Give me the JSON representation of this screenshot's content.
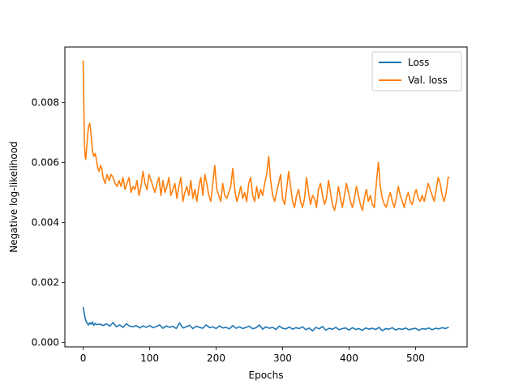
{
  "chart_data": {
    "type": "line",
    "title": "",
    "xlabel": "Epochs",
    "ylabel": "Negative log-likelihood",
    "xlim": [
      -27.5,
      577.5
    ],
    "ylim": [
      -0.00015,
      0.00985
    ],
    "xticks": [
      0,
      100,
      200,
      300,
      400,
      500
    ],
    "xtick_labels": [
      "0",
      "100",
      "200",
      "300",
      "400",
      "500"
    ],
    "yticks": [
      0.0,
      0.002,
      0.004,
      0.006,
      0.008
    ],
    "ytick_labels": [
      "0.000",
      "0.002",
      "0.004",
      "0.006",
      "0.008"
    ],
    "grid": false,
    "legend_position": "top-right",
    "series": [
      {
        "name": "Loss",
        "color": "#1f77b4",
        "x": [
          0,
          2,
          4,
          6,
          8,
          10,
          12,
          14,
          16,
          18,
          20,
          25,
          30,
          35,
          40,
          45,
          50,
          55,
          60,
          65,
          70,
          75,
          80,
          85,
          90,
          95,
          100,
          105,
          110,
          115,
          120,
          125,
          130,
          135,
          140,
          145,
          150,
          155,
          160,
          165,
          170,
          175,
          180,
          185,
          190,
          195,
          200,
          205,
          210,
          215,
          220,
          225,
          230,
          235,
          240,
          245,
          250,
          255,
          260,
          265,
          270,
          275,
          280,
          285,
          290,
          295,
          300,
          305,
          310,
          315,
          320,
          325,
          330,
          335,
          340,
          345,
          350,
          355,
          360,
          365,
          370,
          375,
          380,
          385,
          390,
          395,
          400,
          405,
          410,
          415,
          420,
          425,
          430,
          435,
          440,
          445,
          450,
          455,
          460,
          465,
          470,
          475,
          480,
          485,
          490,
          495,
          500,
          505,
          510,
          515,
          520,
          525,
          530,
          535,
          540,
          545,
          550
        ],
        "y": [
          0.00118,
          0.00092,
          0.00072,
          0.00064,
          0.00058,
          0.00066,
          0.0006,
          0.00068,
          0.00057,
          0.00063,
          0.00059,
          0.00061,
          0.00056,
          0.00062,
          0.00054,
          0.00066,
          0.00052,
          0.00058,
          0.0005,
          0.00062,
          0.00054,
          0.00052,
          0.00056,
          0.00048,
          0.00055,
          0.0005,
          0.00056,
          0.00049,
          0.00053,
          0.00058,
          0.00047,
          0.00055,
          0.0005,
          0.00054,
          0.00046,
          0.00065,
          0.00048,
          0.00052,
          0.00057,
          0.00046,
          0.00054,
          0.0005,
          0.00047,
          0.00058,
          0.00049,
          0.00052,
          0.00046,
          0.00055,
          0.00048,
          0.0005,
          0.00045,
          0.00056,
          0.00047,
          0.00052,
          0.00046,
          0.0005,
          0.00054,
          0.00045,
          0.00049,
          0.00058,
          0.00044,
          0.00052,
          0.00047,
          0.0005,
          0.00043,
          0.00054,
          0.00047,
          0.00045,
          0.00051,
          0.00044,
          0.00049,
          0.00046,
          0.00052,
          0.00042,
          0.00048,
          0.00038,
          0.0005,
          0.00045,
          0.00053,
          0.00041,
          0.00047,
          0.00044,
          0.0005,
          0.00042,
          0.00046,
          0.00048,
          0.00041,
          0.00049,
          0.00043,
          0.00046,
          0.0004,
          0.00048,
          0.00044,
          0.00047,
          0.00043,
          0.0005,
          0.00039,
          0.00046,
          0.00044,
          0.00049,
          0.00041,
          0.00046,
          0.00043,
          0.00048,
          0.00042,
          0.00045,
          0.00047,
          0.0004,
          0.00046,
          0.00044,
          0.00048,
          0.00042,
          0.00047,
          0.00045,
          0.00049,
          0.00046,
          0.00051
        ]
      },
      {
        "name": "Val. loss",
        "color": "#ff7f0e",
        "x": [
          0,
          1,
          2,
          3,
          4,
          6,
          8,
          10,
          12,
          14,
          16,
          18,
          20,
          22,
          24,
          26,
          28,
          30,
          33,
          36,
          39,
          42,
          45,
          48,
          51,
          54,
          57,
          60,
          63,
          66,
          69,
          72,
          75,
          78,
          81,
          84,
          87,
          90,
          93,
          96,
          99,
          102,
          105,
          108,
          111,
          114,
          117,
          120,
          123,
          126,
          129,
          132,
          135,
          138,
          141,
          144,
          147,
          150,
          153,
          156,
          159,
          162,
          165,
          168,
          171,
          174,
          177,
          180,
          183,
          186,
          189,
          192,
          195,
          198,
          201,
          204,
          207,
          210,
          213,
          216,
          219,
          222,
          225,
          228,
          231,
          234,
          237,
          240,
          243,
          246,
          249,
          252,
          255,
          258,
          261,
          264,
          267,
          270,
          273,
          276,
          279,
          282,
          285,
          288,
          291,
          294,
          297,
          300,
          303,
          306,
          309,
          312,
          315,
          318,
          321,
          324,
          327,
          330,
          333,
          336,
          339,
          342,
          345,
          348,
          351,
          354,
          357,
          360,
          363,
          366,
          369,
          372,
          375,
          378,
          381,
          384,
          387,
          390,
          393,
          396,
          399,
          402,
          405,
          408,
          411,
          414,
          417,
          420,
          423,
          426,
          429,
          432,
          435,
          438,
          441,
          444,
          447,
          450,
          453,
          456,
          459,
          462,
          465,
          468,
          471,
          474,
          477,
          480,
          483,
          486,
          489,
          492,
          495,
          498,
          501,
          504,
          507,
          510,
          513,
          516,
          519,
          522,
          525,
          528,
          531,
          534,
          537,
          540,
          543,
          546,
          549,
          551
        ],
        "y": [
          0.0094,
          0.0079,
          0.0066,
          0.0062,
          0.0061,
          0.0067,
          0.0072,
          0.0073,
          0.0069,
          0.0064,
          0.0062,
          0.0063,
          0.0061,
          0.0058,
          0.0057,
          0.0059,
          0.0058,
          0.0055,
          0.0053,
          0.0056,
          0.0054,
          0.0056,
          0.0055,
          0.0053,
          0.0052,
          0.0054,
          0.0052,
          0.0055,
          0.0051,
          0.0053,
          0.0055,
          0.005,
          0.0052,
          0.0051,
          0.0054,
          0.0049,
          0.0052,
          0.0057,
          0.0053,
          0.0051,
          0.0056,
          0.0054,
          0.0052,
          0.005,
          0.0053,
          0.0055,
          0.0049,
          0.0054,
          0.005,
          0.0052,
          0.0055,
          0.0049,
          0.0051,
          0.0053,
          0.0048,
          0.0052,
          0.0055,
          0.0047,
          0.005,
          0.0052,
          0.0049,
          0.0054,
          0.0048,
          0.0051,
          0.0047,
          0.0052,
          0.0055,
          0.0049,
          0.0056,
          0.0053,
          0.0049,
          0.0047,
          0.0053,
          0.0059,
          0.0051,
          0.0049,
          0.0047,
          0.0053,
          0.0049,
          0.0048,
          0.005,
          0.0052,
          0.0058,
          0.0051,
          0.0047,
          0.0049,
          0.0052,
          0.0048,
          0.005,
          0.0047,
          0.0053,
          0.0055,
          0.0049,
          0.0047,
          0.0052,
          0.0048,
          0.0051,
          0.0049,
          0.0053,
          0.0056,
          0.0062,
          0.0054,
          0.0049,
          0.0047,
          0.005,
          0.0053,
          0.0056,
          0.0048,
          0.0046,
          0.0051,
          0.0057,
          0.0052,
          0.0047,
          0.0045,
          0.0049,
          0.0051,
          0.0047,
          0.0045,
          0.0048,
          0.0055,
          0.005,
          0.0046,
          0.0049,
          0.0048,
          0.0045,
          0.0051,
          0.0053,
          0.0049,
          0.0046,
          0.0048,
          0.0054,
          0.005,
          0.0046,
          0.0044,
          0.0047,
          0.0052,
          0.0048,
          0.0045,
          0.0049,
          0.0053,
          0.005,
          0.0047,
          0.0045,
          0.0048,
          0.0052,
          0.0049,
          0.0046,
          0.0044,
          0.0048,
          0.0051,
          0.0047,
          0.0049,
          0.0046,
          0.0045,
          0.0053,
          0.006,
          0.0052,
          0.0048,
          0.0046,
          0.0045,
          0.0048,
          0.005,
          0.0047,
          0.0045,
          0.0048,
          0.0052,
          0.0049,
          0.0047,
          0.0045,
          0.0048,
          0.005,
          0.0047,
          0.0046,
          0.0049,
          0.0051,
          0.0048,
          0.0047,
          0.0049,
          0.0047,
          0.005,
          0.0053,
          0.0051,
          0.0049,
          0.0047,
          0.0051,
          0.0055,
          0.0053,
          0.0049,
          0.0047,
          0.005,
          0.0055,
          0.0055
        ]
      }
    ]
  }
}
